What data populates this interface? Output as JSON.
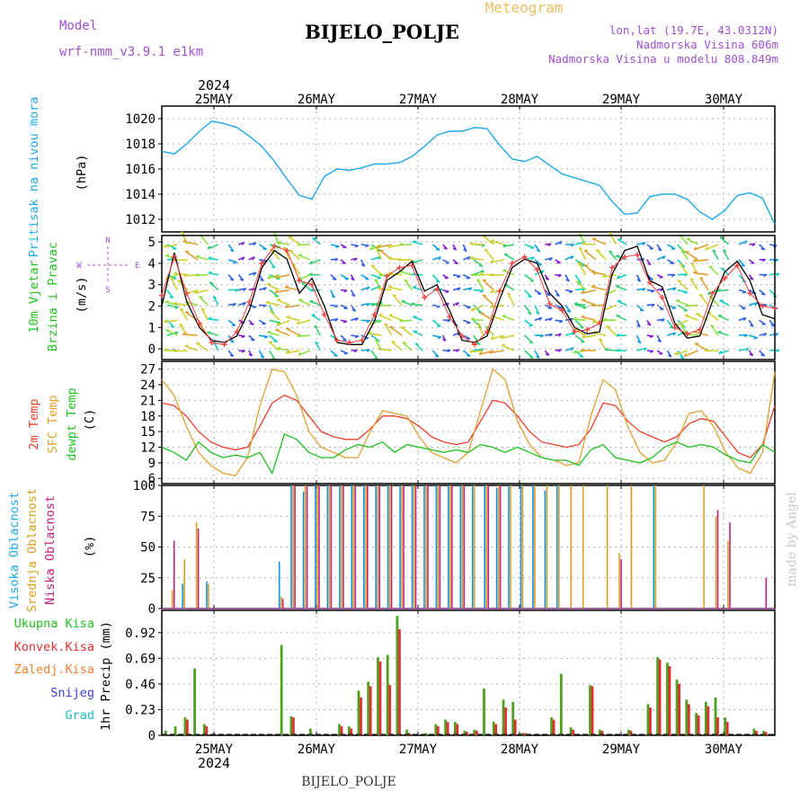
{
  "header": {
    "model_label": "Model",
    "model_name": "wrf-nmm_v3.9.1  e1km",
    "title": "BIJELO_POLJE",
    "subtitle": "Meteogram",
    "lonlat": "lon,lat (19.7E, 43.0312N)",
    "elevation": "Nadmorska Visina 606m",
    "model_elevation": "Nadmorska Visina u modelu 808.849m",
    "watermark": "made by Angel",
    "footer_station": "BIJELO_POLJE"
  },
  "axis_dates": {
    "year": "2024",
    "days": [
      "25MAY",
      "26MAY",
      "27MAY",
      "28MAY",
      "29MAY",
      "30MAY"
    ]
  },
  "colors": {
    "pressure": "#1fa8e8",
    "temp2m": "#e8402a",
    "sfc_temp": "#e0a030",
    "dewpoint": "#20c020",
    "cloud_high": "#1090e0",
    "cloud_mid": "#d8a020",
    "cloud_low": "#c02080",
    "precip_total": "#50a020",
    "precip_conv": "#e03030",
    "frozen": "#f08030",
    "snow": "#4040e0",
    "hail": "#20c0c0",
    "wind_label": "#20c020",
    "wind_speed": "#000000",
    "gust": "#f04040"
  },
  "chart_data": [
    {
      "type": "line",
      "name": "pressure",
      "ylabel": [
        "Pritisak na nivou mora",
        "(hPa)"
      ],
      "ylim": [
        1011,
        1021
      ],
      "yticks": [
        "1012",
        "1014",
        "1016",
        "1018",
        "1020"
      ],
      "x_unit": "hours from 2024-05-24 12 UTC",
      "series": [
        {
          "color_key": "pressure",
          "x": [
            0,
            3,
            6,
            9,
            12,
            15,
            18,
            21,
            24,
            27,
            30,
            33,
            36,
            39,
            42,
            45,
            48,
            51,
            54,
            57,
            60,
            63,
            66,
            69,
            72,
            75,
            78,
            81,
            84,
            87,
            90,
            93,
            96,
            99,
            102,
            105,
            108,
            111,
            114,
            117,
            120,
            123,
            126,
            129,
            132,
            135,
            138,
            141,
            144,
            147
          ],
          "values": [
            1017.4,
            1017.2,
            1018.0,
            1019.0,
            1019.8,
            1019.6,
            1019.3,
            1018.6,
            1017.8,
            1016.6,
            1015.2,
            1013.9,
            1013.6,
            1015.4,
            1016.0,
            1015.9,
            1016.1,
            1016.4,
            1016.4,
            1016.5,
            1017.0,
            1017.8,
            1018.7,
            1019.0,
            1019.0,
            1019.3,
            1019.2,
            1017.9,
            1016.8,
            1016.6,
            1017.0,
            1016.3,
            1015.6,
            1015.3,
            1015.0,
            1014.7,
            1013.4,
            1012.4,
            1012.5,
            1013.8,
            1014.0,
            1014.0,
            1013.6,
            1012.6,
            1012.0,
            1012.7,
            1013.9,
            1014.1,
            1013.7,
            1011.6
          ]
        }
      ]
    },
    {
      "type": "line",
      "name": "wind",
      "ylabel": [
        "10m Vjetar",
        "Brzina i Pravac",
        "(m/s)"
      ],
      "compass": [
        "N",
        "E",
        "S",
        "W"
      ],
      "ylim": [
        -0.5,
        5.3
      ],
      "yticks": [
        "0",
        "1",
        "2",
        "3",
        "4",
        "5"
      ],
      "series": [
        {
          "name": "",
          "color_key": "wind_speed",
          "values": [
            2.0,
            4.5,
            2.2,
            1.0,
            0.4,
            0.3,
            0.6,
            1.8,
            3.8,
            4.6,
            4.2,
            2.6,
            3.3,
            2.0,
            0.3,
            0.2,
            0.2,
            1.3,
            3.2,
            3.6,
            4.1,
            2.7,
            3.0,
            1.8,
            0.4,
            0.3,
            0.6,
            2.3,
            3.8,
            4.2,
            4.0,
            2.6,
            2.0,
            1.0,
            0.7,
            0.8,
            3.5,
            4.6,
            4.8,
            3.2,
            2.9,
            1.2,
            0.5,
            0.6,
            2.2,
            3.6,
            4.1,
            3.2,
            1.6,
            1.4
          ]
        },
        {
          "name": "",
          "color_key": "gust",
          "values": [
            2.5,
            4.3,
            2.6,
            1.2,
            0.3,
            0.2,
            0.8,
            2.2,
            4.0,
            4.8,
            4.6,
            3.2,
            3.0,
            1.6,
            0.4,
            0.3,
            0.4,
            1.6,
            3.4,
            3.8,
            3.9,
            2.4,
            2.8,
            1.5,
            0.6,
            0.2,
            0.8,
            2.7,
            4.0,
            4.3,
            3.7,
            2.1,
            1.8,
            0.8,
            0.9,
            1.2,
            3.8,
            4.3,
            4.4,
            3.1,
            2.4,
            1.0,
            0.7,
            0.9,
            2.6,
            3.3,
            3.9,
            2.6,
            2.0,
            1.9
          ]
        }
      ]
    },
    {
      "type": "line",
      "name": "temperature",
      "ylabel": [
        "2m Temp",
        "SFC Temp",
        "dewpt Temp",
        "(C)"
      ],
      "ylim": [
        5,
        28.5
      ],
      "yticks": [
        "6",
        "9",
        "12",
        "15",
        "18",
        "21",
        "24",
        "27"
      ],
      "series": [
        {
          "name": "2m Temp",
          "color_key": "temp2m",
          "values": [
            20.5,
            20.0,
            18.0,
            15.0,
            13.0,
            12.0,
            11.5,
            12.0,
            16.0,
            20.5,
            22.0,
            21.0,
            18.0,
            15.0,
            14.0,
            13.5,
            13.5,
            15.5,
            18.0,
            18.0,
            17.5,
            16.0,
            14.0,
            13.0,
            12.5,
            13.0,
            17.0,
            21.0,
            20.5,
            18.0,
            15.0,
            13.0,
            12.5,
            12.0,
            12.5,
            15.5,
            20.5,
            20.0,
            17.0,
            15.0,
            14.0,
            13.0,
            14.0,
            16.5,
            17.5,
            17.0,
            14.0,
            11.0,
            10.0,
            12.5,
            20.0
          ]
        },
        {
          "name": "SFC Temp",
          "color_key": "sfc_temp",
          "values": [
            25.0,
            22.0,
            16.0,
            11.0,
            8.5,
            7.0,
            6.5,
            10.0,
            20.0,
            27.0,
            26.5,
            22.0,
            15.0,
            12.0,
            11.0,
            10.0,
            10.0,
            15.0,
            19.0,
            18.5,
            18.0,
            14.0,
            11.0,
            10.0,
            9.0,
            11.0,
            19.0,
            27.0,
            25.0,
            17.0,
            12.5,
            10.0,
            9.5,
            8.5,
            9.0,
            18.0,
            25.0,
            23.0,
            16.0,
            11.0,
            9.0,
            9.5,
            13.0,
            18.5,
            19.0,
            16.0,
            11.0,
            8.0,
            7.0,
            11.0,
            26.5
          ]
        },
        {
          "name": "dewpt Temp",
          "color_key": "dewpoint",
          "values": [
            12.0,
            11.0,
            9.5,
            13.0,
            11.0,
            10.0,
            10.5,
            10.0,
            11.0,
            7.0,
            14.5,
            13.5,
            11.0,
            10.0,
            10.0,
            11.5,
            12.5,
            12.0,
            13.0,
            11.0,
            12.5,
            12.0,
            11.5,
            11.0,
            11.5,
            11.0,
            12.5,
            12.0,
            11.0,
            12.0,
            11.0,
            10.0,
            9.5,
            9.5,
            8.5,
            11.5,
            12.5,
            10.0,
            9.5,
            9.0,
            10.0,
            12.0,
            13.0,
            12.0,
            12.5,
            12.0,
            10.5,
            9.5,
            9.0,
            12.5,
            11.0
          ]
        }
      ]
    },
    {
      "type": "bar",
      "name": "clouds",
      "ylabel": [
        "Visoka Oblacnost",
        "Srednja Oblacnost",
        "Niska Oblacnost",
        "(%)"
      ],
      "ylim": [
        0,
        100
      ],
      "yticks": [
        "0",
        "25",
        "50",
        "75",
        "100"
      ],
      "series": [
        {
          "name": "Visoka Oblacnost",
          "color_key": "cloud_high",
          "values": [
            0,
            20,
            0,
            22,
            0,
            0,
            0,
            0,
            0,
            38,
            100,
            95,
            100,
            100,
            100,
            100,
            100,
            100,
            100,
            100,
            100,
            100,
            100,
            100,
            100,
            100,
            100,
            98,
            100,
            100,
            100,
            96,
            100,
            0,
            0,
            0,
            0,
            0,
            0,
            0,
            100,
            0,
            0,
            0,
            0,
            0,
            0,
            0,
            0,
            0
          ]
        },
        {
          "name": "Srednja Oblacnost",
          "color_key": "cloud_mid",
          "values": [
            15,
            40,
            70,
            20,
            0,
            0,
            0,
            0,
            0,
            10,
            100,
            100,
            100,
            100,
            100,
            100,
            100,
            100,
            100,
            100,
            100,
            100,
            100,
            100,
            100,
            100,
            100,
            100,
            100,
            100,
            100,
            100,
            100,
            100,
            100,
            0,
            100,
            45,
            100,
            0,
            100,
            0,
            0,
            0,
            100,
            75,
            55,
            0,
            0,
            0
          ]
        },
        {
          "name": "Niska Oblacnost",
          "color_key": "cloud_low",
          "values": [
            55,
            0,
            65,
            0,
            0,
            0,
            0,
            0,
            0,
            8,
            100,
            100,
            100,
            100,
            100,
            100,
            100,
            100,
            100,
            100,
            100,
            100,
            100,
            100,
            100,
            0,
            100,
            100,
            0,
            0,
            0,
            0,
            0,
            0,
            0,
            0,
            0,
            40,
            0,
            0,
            0,
            0,
            0,
            0,
            0,
            80,
            70,
            0,
            0,
            25
          ]
        }
      ]
    },
    {
      "type": "bar",
      "name": "precipitation",
      "ylabel": [
        "1hr Precip (mm)"
      ],
      "legend": [
        "Ukupna  Kisa",
        "Konvek.Kisa",
        "Zaledj.Kisa",
        "Snijeg",
        "Grad"
      ],
      "ylim": [
        0,
        1.12
      ],
      "yticks": [
        "0",
        "0.23",
        "0.46",
        "0.69",
        "0.92"
      ],
      "series": [
        {
          "name": "Ukupna  Kisa",
          "color_key": "precip_total",
          "values": [
            0.04,
            0.08,
            0.16,
            0.6,
            0.1,
            0.0,
            0.0,
            0.0,
            0.0,
            0.0,
            0.0,
            0.0,
            0.81,
            0.17,
            0.0,
            0.06,
            0.0,
            0.0,
            0.1,
            0.08,
            0.4,
            0.48,
            0.7,
            0.72,
            1.07,
            0.05,
            0.0,
            0.02,
            0.1,
            0.14,
            0.12,
            0.04,
            0.05,
            0.42,
            0.12,
            0.32,
            0.3,
            0.02,
            0.0,
            0.0,
            0.16,
            0.55,
            0.07,
            0.0,
            0.45,
            0.05,
            0.0,
            0.0,
            0.05,
            0.0,
            0.28,
            0.7,
            0.65,
            0.5,
            0.32,
            0.2,
            0.3,
            0.34,
            0.16,
            0.0,
            0.0,
            0.06,
            0.04
          ]
        },
        {
          "name": "Konvek.Kisa",
          "color_key": "precip_conv",
          "values": [
            0.0,
            0.0,
            0.14,
            0.0,
            0.08,
            0.0,
            0.0,
            0.0,
            0.0,
            0.0,
            0.0,
            0.0,
            0.0,
            0.16,
            0.0,
            0.0,
            0.0,
            0.0,
            0.08,
            0.06,
            0.34,
            0.44,
            0.66,
            0.45,
            0.95,
            0.02,
            0.0,
            0.0,
            0.08,
            0.12,
            0.1,
            0.03,
            0.04,
            0.0,
            0.1,
            0.25,
            0.14,
            0.02,
            0.0,
            0.0,
            0.14,
            0.0,
            0.05,
            0.0,
            0.44,
            0.04,
            0.0,
            0.0,
            0.04,
            0.0,
            0.25,
            0.68,
            0.62,
            0.46,
            0.28,
            0.18,
            0.26,
            0.16,
            0.12,
            0.0,
            0.0,
            0.04,
            0.03
          ]
        }
      ]
    }
  ]
}
